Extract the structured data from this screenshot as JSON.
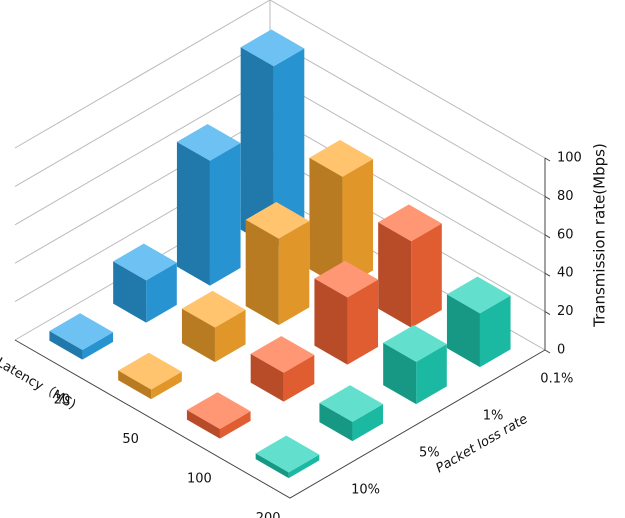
{
  "chart_data": {
    "type": "bar3d",
    "x_label": "Latency（MS)",
    "y_label": "Packet loss rate",
    "z_label": "Transmission rate(Mbps)",
    "x_categories": [
      "20",
      "50",
      "100",
      "200"
    ],
    "y_categories": [
      "0.1%",
      "1%",
      "5%",
      "10%"
    ],
    "series": [
      {
        "color": "#2ea8ee",
        "values": [
          95,
          65,
          22,
          5
        ]
      },
      {
        "color": "#ffab2e",
        "values": [
          58,
          45,
          18,
          5
        ]
      },
      {
        "color": "#ff6a3a",
        "values": [
          45,
          35,
          15,
          5
        ]
      },
      {
        "color": "#1fd3b8",
        "values": [
          28,
          22,
          10,
          3
        ]
      }
    ],
    "zlim": [
      0,
      100
    ],
    "zticks": [
      0,
      20,
      40,
      60,
      80,
      100
    ]
  }
}
